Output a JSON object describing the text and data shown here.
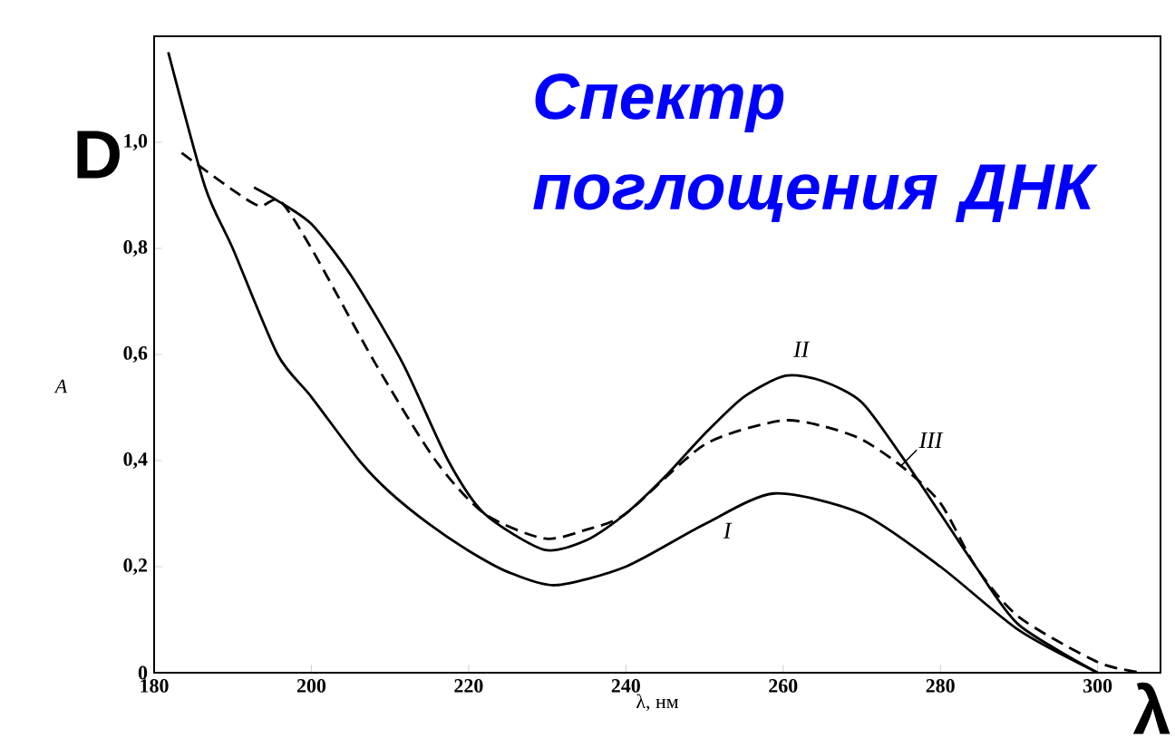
{
  "chart_data": {
    "type": "line",
    "title": "Спектр поглощения ДНК",
    "xlabel": "λ, нм",
    "ylabel": "A",
    "annotations": [
      "D",
      "λ"
    ],
    "xlim": [
      180,
      308
    ],
    "ylim": [
      0,
      1.2
    ],
    "xticks": [
      180,
      200,
      220,
      240,
      260,
      280,
      300
    ],
    "yticks": [
      {
        "value": 0,
        "label": "0"
      },
      {
        "value": 0.2,
        "label": "0,2"
      },
      {
        "value": 0.4,
        "label": "0,4"
      },
      {
        "value": 0.6,
        "label": "0,6"
      },
      {
        "value": 0.8,
        "label": "0,8"
      },
      {
        "value": 1.0,
        "label": "1,0"
      }
    ],
    "series": [
      {
        "name": "I",
        "color": "#000000",
        "line_style": "solid",
        "x": [
          181.8,
          186.5,
          190,
          195.7,
          200,
          206.1,
          210,
          215,
          220,
          225,
          231,
          240,
          250,
          258.9,
          270,
          280,
          290,
          300
        ],
        "values": [
          1.17,
          0.915,
          0.8,
          0.6,
          0.52,
          0.4,
          0.34,
          0.28,
          0.23,
          0.19,
          0.165,
          0.2,
          0.28,
          0.338,
          0.3,
          0.2,
          0.08,
          0.0
        ]
      },
      {
        "name": "II",
        "color": "#000000",
        "line_style": "solid",
        "x": [
          192.7,
          195.7,
          200,
          205,
          211.6,
          217.4,
          222,
          229.6,
          235,
          240,
          245,
          250,
          255,
          260.3,
          265,
          270,
          275,
          280,
          284.5,
          290,
          300
        ],
        "values": [
          0.915,
          0.89,
          0.846,
          0.75,
          0.584,
          0.4,
          0.3,
          0.232,
          0.25,
          0.3,
          0.37,
          0.45,
          0.52,
          0.56,
          0.55,
          0.51,
          0.41,
          0.3,
          0.2,
          0.09,
          0.0
        ]
      },
      {
        "name": "III",
        "color": "#000000",
        "line_style": "dashed",
        "x": [
          183.5,
          190,
          193.4,
          196,
          200,
          208.1,
          215.8,
          222,
          229.6,
          235,
          240,
          250,
          259.6,
          265,
          270,
          275,
          280,
          284.5,
          290,
          300,
          305.7
        ],
        "values": [
          0.98,
          0.91,
          0.88,
          0.89,
          0.8,
          0.584,
          0.4,
          0.3,
          0.253,
          0.27,
          0.3,
          0.43,
          0.475,
          0.465,
          0.44,
          0.39,
          0.32,
          0.2,
          0.105,
          0.02,
          0.0
        ]
      }
    ]
  }
}
